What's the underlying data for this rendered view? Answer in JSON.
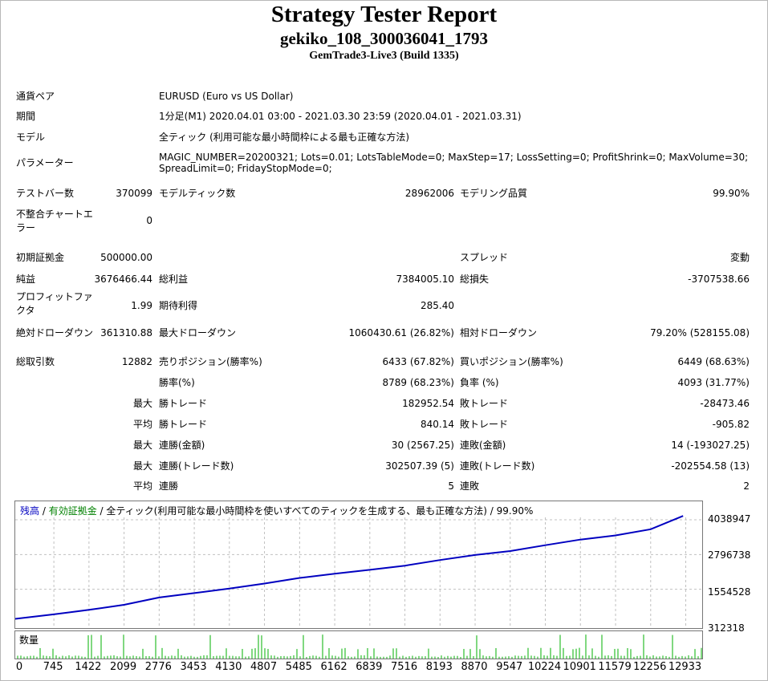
{
  "header": {
    "title": "Strategy Tester Report",
    "subtitle": "gekiko_108_300036041_1793",
    "server": "GemTrade3-Live3 (Build 1335)"
  },
  "settings": {
    "pair_label": "通貨ペア",
    "pair_value": "EURUSD (Euro vs US Dollar)",
    "period_label": "期間",
    "period_value": "1分足(M1) 2020.04.01 03:00 - 2021.03.30 23:59 (2020.04.01 - 2021.03.31)",
    "model_label": "モデル",
    "model_value": "全ティック (利用可能な最小時間枠による最も正確な方法)",
    "params_label": "パラメーター",
    "params_line1": "MAGIC_NUMBER=20200321; Lots=0.01; LotsTableMode=0; MaxStep=17; LossSetting=0; ProfitShrink=0; MaxVolume=30;",
    "params_line2": "SpreadLimit=0; FridayStopMode=0;"
  },
  "bars": {
    "test_bars_label": "テストバー数",
    "test_bars_value": "370099",
    "model_ticks_label": "モデルティック数",
    "model_ticks_value": "28962006",
    "quality_label": "モデリング品質",
    "quality_value": "99.90%",
    "mismatch_label": "不整合チャートエラー",
    "mismatch_value": "0"
  },
  "summary": {
    "initial_deposit_label": "初期証拠金",
    "initial_deposit_value": "500000.00",
    "spread_label": "スプレッド",
    "spread_value": "変動",
    "net_profit_label": "純益",
    "net_profit_value": "3676466.44",
    "gross_profit_label": "総利益",
    "gross_profit_value": "7384005.10",
    "gross_loss_label": "総損失",
    "gross_loss_value": "-3707538.66",
    "profit_factor_label": "プロフィットファクタ",
    "profit_factor_value": "1.99",
    "expected_payoff_label": "期待利得",
    "expected_payoff_value": "285.40",
    "abs_dd_label": "絶対ドローダウン",
    "abs_dd_value": "361310.88",
    "max_dd_label": "最大ドローダウン",
    "max_dd_value": "1060430.61 (26.82%)",
    "rel_dd_label": "相対ドローダウン",
    "rel_dd_value": "79.20% (528155.08)"
  },
  "trades": {
    "total_label": "総取引数",
    "total_value": "12882",
    "short_label": "売りポジション(勝率%)",
    "short_value": "6433 (67.82%)",
    "long_label": "買いポジション(勝率%)",
    "long_value": "6449 (68.63%)",
    "win_rate_label": "勝率(%)",
    "win_rate_value": "8789 (68.23%)",
    "loss_rate_label": "負率 (%)",
    "loss_rate_value": "4093 (31.77%)",
    "largest_label": "最大",
    "largest_win_label": "勝トレード",
    "largest_win_value": "182952.54",
    "largest_loss_label": "敗トレード",
    "largest_loss_value": "-28473.46",
    "average_label": "平均",
    "average_win_label": "勝トレード",
    "average_win_value": "840.14",
    "average_loss_label": "敗トレード",
    "average_loss_value": "-905.82",
    "max_consec_label": "最大",
    "max_consec_wins_money_label": "連勝(金額)",
    "max_consec_wins_money_value": "30 (2567.25)",
    "max_consec_losses_money_label": "連敗(金額)",
    "max_consec_losses_money_value": "14 (-193027.25)",
    "max_consec2_label": "最大",
    "max_consec_profit_label": "連勝(トレード数)",
    "max_consec_profit_value": "302507.39 (5)",
    "max_consec_loss_label": "連敗(トレード数)",
    "max_consec_loss_value": "-202554.58 (13)",
    "avg_consec_label": "平均",
    "avg_consec_wins_label": "連勝",
    "avg_consec_wins_value": "5",
    "avg_consec_losses_label": "連敗",
    "avg_consec_losses_value": "2"
  },
  "chart_legend": {
    "balance": "残高",
    "sep1": " / ",
    "equity": "有効証拠金",
    "rest": " / 全ティック(利用可能な最小時間枠を使いすべてのティックを生成する、最も正確な方法) / 99.90%"
  },
  "volume_label": "数量",
  "colors": {
    "balance": "#0000c0",
    "equity": "#008000",
    "volume": "#00b000",
    "grid": "#c0c0c0"
  },
  "chart_data": {
    "type": "line",
    "series": [
      {
        "name": "残高",
        "x": [
          0,
          745,
          1422,
          2099,
          2776,
          3453,
          4130,
          4807,
          5485,
          6162,
          6839,
          7516,
          8193,
          8870,
          9547,
          10224,
          10901,
          11579,
          12256,
          12882
        ],
        "values": [
          500000,
          660000,
          820000,
          1000000,
          1260000,
          1420000,
          1580000,
          1760000,
          1960000,
          2110000,
          2250000,
          2400000,
          2600000,
          2780000,
          2920000,
          3130000,
          3330000,
          3480000,
          3700000,
          4176466
        ]
      }
    ],
    "y_ticks": [
      "4038947",
      "2796738",
      "1554528",
      "312318"
    ],
    "ylim": [
      312318,
      4038947
    ],
    "x_ticks": [
      "0",
      "745",
      "1422",
      "2099",
      "2776",
      "3453",
      "4130",
      "4807",
      "5485",
      "6162",
      "6839",
      "7516",
      "8193",
      "8870",
      "9547",
      "10224",
      "10901",
      "11579",
      "12256",
      "12933"
    ],
    "xlim": [
      0,
      13250
    ],
    "grid": true
  }
}
